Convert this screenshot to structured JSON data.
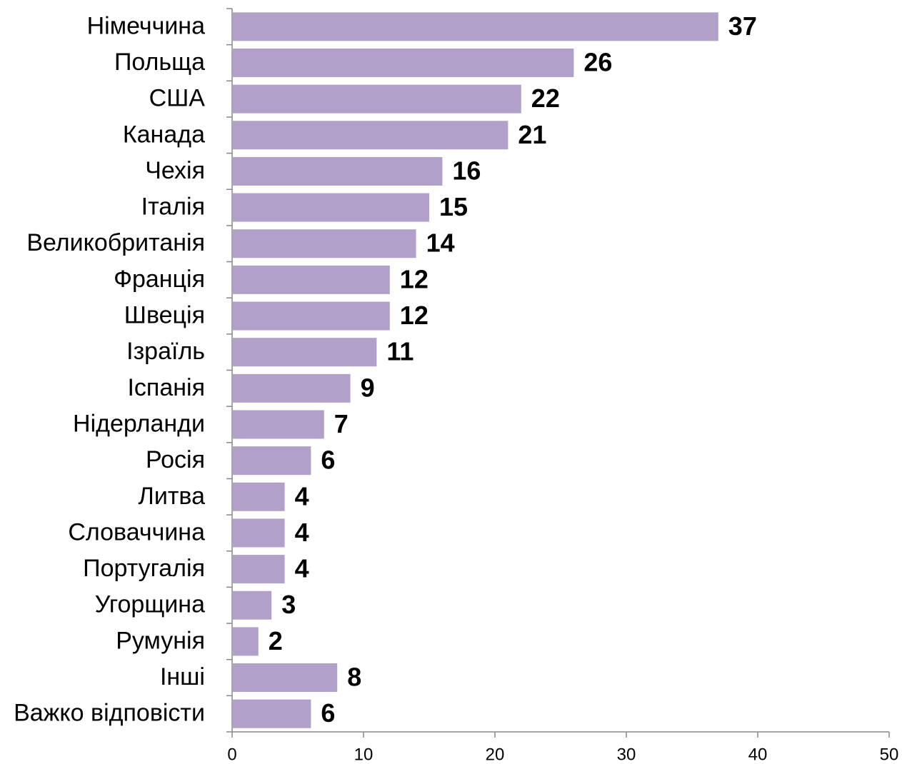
{
  "chart_data": {
    "type": "bar",
    "orientation": "horizontal",
    "categories": [
      "Німеччина",
      "Польща",
      "США",
      "Канада",
      "Чехія",
      "Італія",
      "Великобританія",
      "Франція",
      "Швеція",
      "Ізраїль",
      "Іспанія",
      "Нідерланди",
      "Росія",
      "Литва",
      "Словаччина",
      "Португалія",
      "Угорщина",
      "Румунія",
      "Інші",
      "Важко відповісти"
    ],
    "values": [
      37,
      26,
      22,
      21,
      16,
      15,
      14,
      12,
      12,
      11,
      9,
      7,
      6,
      4,
      4,
      4,
      3,
      2,
      8,
      6
    ],
    "color": "#b1a1c9",
    "xlim": [
      0,
      50
    ],
    "xticks": [
      0,
      10,
      20,
      30,
      40,
      50
    ]
  }
}
